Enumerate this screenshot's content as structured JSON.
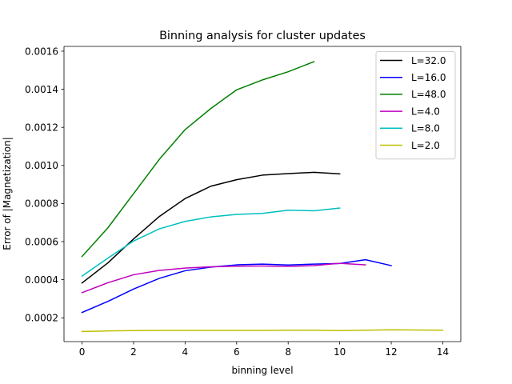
{
  "chart_data": {
    "type": "line",
    "title": "Binning analysis for cluster updates",
    "xlabel": "binning level",
    "ylabel": "Error of |Magnetization|",
    "xlim": [
      -0.7,
      14.7
    ],
    "ylim": [
      7.5e-05,
      0.001625
    ],
    "xticks": [
      0,
      2,
      4,
      6,
      8,
      10,
      12,
      14
    ],
    "xtick_labels": [
      "0",
      "2",
      "4",
      "6",
      "8",
      "10",
      "12",
      "14"
    ],
    "yticks": [
      0.0002,
      0.0004,
      0.0006,
      0.0008,
      0.001,
      0.0012,
      0.0014,
      0.0016
    ],
    "ytick_labels": [
      "0.0002",
      "0.0004",
      "0.0006",
      "0.0008",
      "0.0010",
      "0.0012",
      "0.0014",
      "0.0016"
    ],
    "grid": false,
    "legend_position": "top-right",
    "series": [
      {
        "name": "L=32.0",
        "color": "#000000",
        "x": [
          0,
          1,
          2,
          3,
          4,
          5,
          6,
          7,
          8,
          9,
          10
        ],
        "y": [
          0.000383,
          0.000488,
          0.000614,
          0.000732,
          0.000826,
          0.000891,
          0.000925,
          0.000949,
          0.000957,
          0.000964,
          0.000956
        ]
      },
      {
        "name": "L=16.0",
        "color": "#0000ff",
        "x": [
          0,
          1,
          2,
          3,
          4,
          5,
          6,
          7,
          8,
          9,
          10,
          11,
          12
        ],
        "y": [
          0.000228,
          0.000286,
          0.000351,
          0.000407,
          0.000447,
          0.000466,
          0.000478,
          0.000482,
          0.000477,
          0.000482,
          0.000485,
          0.000505,
          0.000474
        ]
      },
      {
        "name": "L=48.0",
        "color": "#008000",
        "x": [
          0,
          1,
          2,
          3,
          4,
          5,
          6,
          7,
          8,
          9
        ],
        "y": [
          0.000522,
          0.000672,
          0.000852,
          0.001032,
          0.001188,
          0.001299,
          0.001397,
          0.001449,
          0.001492,
          0.001545
        ]
      },
      {
        "name": "L=4.0",
        "color": "#bf00bf",
        "x": [
          0,
          1,
          2,
          3,
          4,
          5,
          6,
          7,
          8,
          9,
          10,
          11
        ],
        "y": [
          0.000332,
          0.000384,
          0.000426,
          0.000449,
          0.000461,
          0.000468,
          0.000471,
          0.000472,
          0.00047,
          0.000474,
          0.000486,
          0.000478
        ]
      },
      {
        "name": "L=8.0",
        "color": "#00bfbf",
        "x": [
          0,
          1,
          2,
          3,
          4,
          5,
          6,
          7,
          8,
          9,
          10
        ],
        "y": [
          0.000419,
          0.000513,
          0.000603,
          0.000667,
          0.000706,
          0.00073,
          0.000743,
          0.000748,
          0.000765,
          0.000762,
          0.000776
        ]
      },
      {
        "name": "L=2.0",
        "color": "#bfbf00",
        "x": [
          0,
          1,
          2,
          3,
          4,
          5,
          6,
          7,
          8,
          9,
          10,
          11,
          12,
          13,
          14
        ],
        "y": [
          0.000128,
          0.000131,
          0.000133,
          0.000134,
          0.000134,
          0.000134,
          0.000134,
          0.000134,
          0.000135,
          0.000135,
          0.000133,
          0.000135,
          0.000137,
          0.000136,
          0.000135
        ]
      }
    ]
  }
}
